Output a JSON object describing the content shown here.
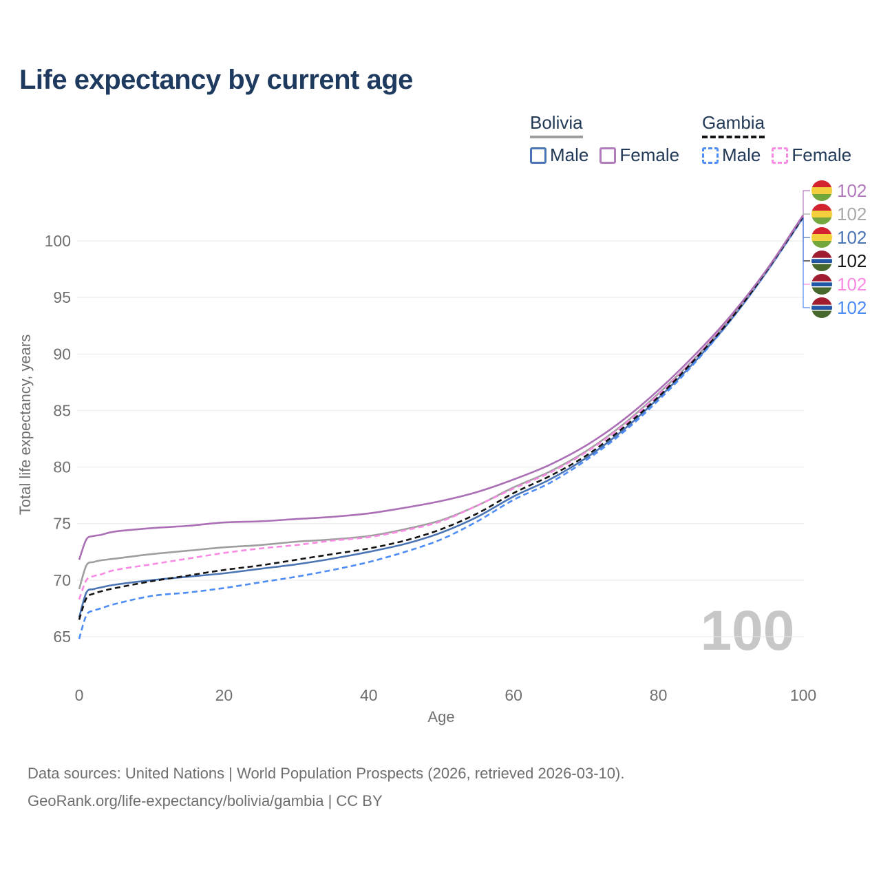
{
  "title": "Life expectancy by current age",
  "legend": {
    "groups": [
      {
        "name": "Bolivia",
        "line_style": "solid",
        "underline_color": "#9e9e9e",
        "items": [
          {
            "label": "Male",
            "color": "#4a74b4"
          },
          {
            "label": "Female",
            "color": "#b17cba"
          }
        ]
      },
      {
        "name": "Gambia",
        "line_style": "dashed",
        "underline_color": "#141414",
        "items": [
          {
            "label": "Male",
            "color": "#4d8bf5"
          },
          {
            "label": "Female",
            "color": "#f98ae3"
          }
        ]
      }
    ]
  },
  "chart_data": {
    "type": "line",
    "title": "Life expectancy by current age",
    "xlabel": "Age",
    "ylabel": "Total life expectancy, years",
    "x_ticks": [
      0,
      20,
      40,
      60,
      80,
      100
    ],
    "y_ticks": [
      65,
      70,
      75,
      80,
      85,
      90,
      95,
      100
    ],
    "xlim": [
      0,
      100
    ],
    "ylim": [
      63.5,
      103.5
    ],
    "grid": "horizontal",
    "legend_position": "top-right",
    "watermark": "100",
    "ages": [
      0,
      1,
      2,
      3,
      5,
      10,
      15,
      20,
      25,
      30,
      35,
      40,
      45,
      50,
      55,
      60,
      65,
      70,
      75,
      80,
      85,
      90,
      95,
      100
    ],
    "series": [
      {
        "id": "bolivia_female",
        "name": "Bolivia Female",
        "color": "#aa6fb5",
        "dash": "solid",
        "values": [
          71.8,
          73.6,
          73.9,
          74.0,
          74.3,
          74.6,
          74.8,
          75.1,
          75.2,
          75.4,
          75.6,
          75.9,
          76.4,
          77.0,
          77.8,
          78.9,
          80.2,
          81.9,
          84.1,
          86.8,
          89.9,
          93.4,
          97.5,
          102.3
        ]
      },
      {
        "id": "bolivia_both",
        "name": "Bolivia Both sexes",
        "color": "#9e9e9e",
        "dash": "solid",
        "values": [
          69.2,
          71.3,
          71.6,
          71.75,
          71.9,
          72.3,
          72.6,
          72.9,
          73.1,
          73.4,
          73.6,
          73.9,
          74.5,
          75.3,
          76.6,
          78.2,
          79.6,
          81.4,
          83.7,
          86.5,
          89.6,
          93.2,
          97.4,
          102.25
        ]
      },
      {
        "id": "bolivia_male",
        "name": "Bolivia Male",
        "color": "#4a74b4",
        "dash": "solid",
        "values": [
          66.7,
          68.9,
          69.2,
          69.35,
          69.6,
          70.0,
          70.3,
          70.6,
          71.0,
          71.4,
          71.9,
          72.5,
          73.2,
          74.2,
          75.6,
          77.4,
          78.9,
          80.8,
          83.2,
          86.1,
          89.3,
          93.0,
          97.3,
          102.1
        ]
      },
      {
        "id": "gambia_both",
        "name": "Gambia Both sexes",
        "color": "#141414",
        "dash": "dashed",
        "values": [
          66.5,
          68.4,
          68.8,
          69.0,
          69.3,
          69.9,
          70.4,
          70.9,
          71.3,
          71.8,
          72.3,
          72.8,
          73.5,
          74.5,
          75.9,
          77.7,
          79.2,
          81.0,
          83.4,
          86.2,
          89.5,
          93.1,
          97.4,
          102.15
        ]
      },
      {
        "id": "gambia_female",
        "name": "Gambia Female",
        "color": "#f98ae3",
        "dash": "dashed",
        "values": [
          68.3,
          70.0,
          70.35,
          70.5,
          70.9,
          71.4,
          71.9,
          72.4,
          72.8,
          73.1,
          73.5,
          73.8,
          74.4,
          75.2,
          76.6,
          78.1,
          79.5,
          81.3,
          83.6,
          86.4,
          89.6,
          93.2,
          97.4,
          102.2
        ]
      },
      {
        "id": "gambia_male",
        "name": "Gambia Male",
        "color": "#4d8bf5",
        "dash": "dashed",
        "values": [
          64.8,
          66.9,
          67.3,
          67.5,
          67.9,
          68.6,
          68.9,
          69.3,
          69.8,
          70.3,
          70.9,
          71.6,
          72.5,
          73.6,
          75.2,
          77.1,
          78.6,
          80.6,
          83.0,
          85.9,
          89.2,
          93.0,
          97.3,
          102.05
        ]
      }
    ],
    "end_labels": [
      {
        "series": "bolivia_female",
        "flag": "bolivia",
        "value": "102",
        "color": "#b279bd"
      },
      {
        "series": "bolivia_both",
        "flag": "bolivia",
        "value": "102",
        "color": "#a8a8a8"
      },
      {
        "series": "bolivia_male",
        "flag": "bolivia",
        "value": "102",
        "color": "#4a74b4"
      },
      {
        "series": "gambia_both",
        "flag": "gambia",
        "value": "102",
        "color": "#141414"
      },
      {
        "series": "gambia_female",
        "flag": "gambia",
        "value": "102",
        "color": "#f98ae3"
      },
      {
        "series": "gambia_male",
        "flag": "gambia",
        "value": "102",
        "color": "#4d8bf5"
      }
    ]
  },
  "flags": {
    "bolivia": {
      "stripes": [
        {
          "color": "#d3232e",
          "from": 0,
          "to": 0.3333
        },
        {
          "color": "#f3cf3d",
          "from": 0.3333,
          "to": 0.6667
        },
        {
          "color": "#74a63e",
          "from": 0.6667,
          "to": 1
        }
      ]
    },
    "gambia": {
      "stripes": [
        {
          "color": "#a01d30",
          "from": 0,
          "to": 0.36
        },
        {
          "color": "#ffffff",
          "from": 0.36,
          "to": 0.41
        },
        {
          "color": "#2056a5",
          "from": 0.41,
          "to": 0.6
        },
        {
          "color": "#ffffff",
          "from": 0.6,
          "to": 0.65
        },
        {
          "color": "#47682c",
          "from": 0.65,
          "to": 1
        }
      ]
    }
  },
  "footer": {
    "line1": "Data sources: United Nations | World Population Prospects (2026, retrieved 2026-03-10).",
    "line2": "GeoRank.org/life-expectancy/bolivia/gambia | CC BY"
  }
}
